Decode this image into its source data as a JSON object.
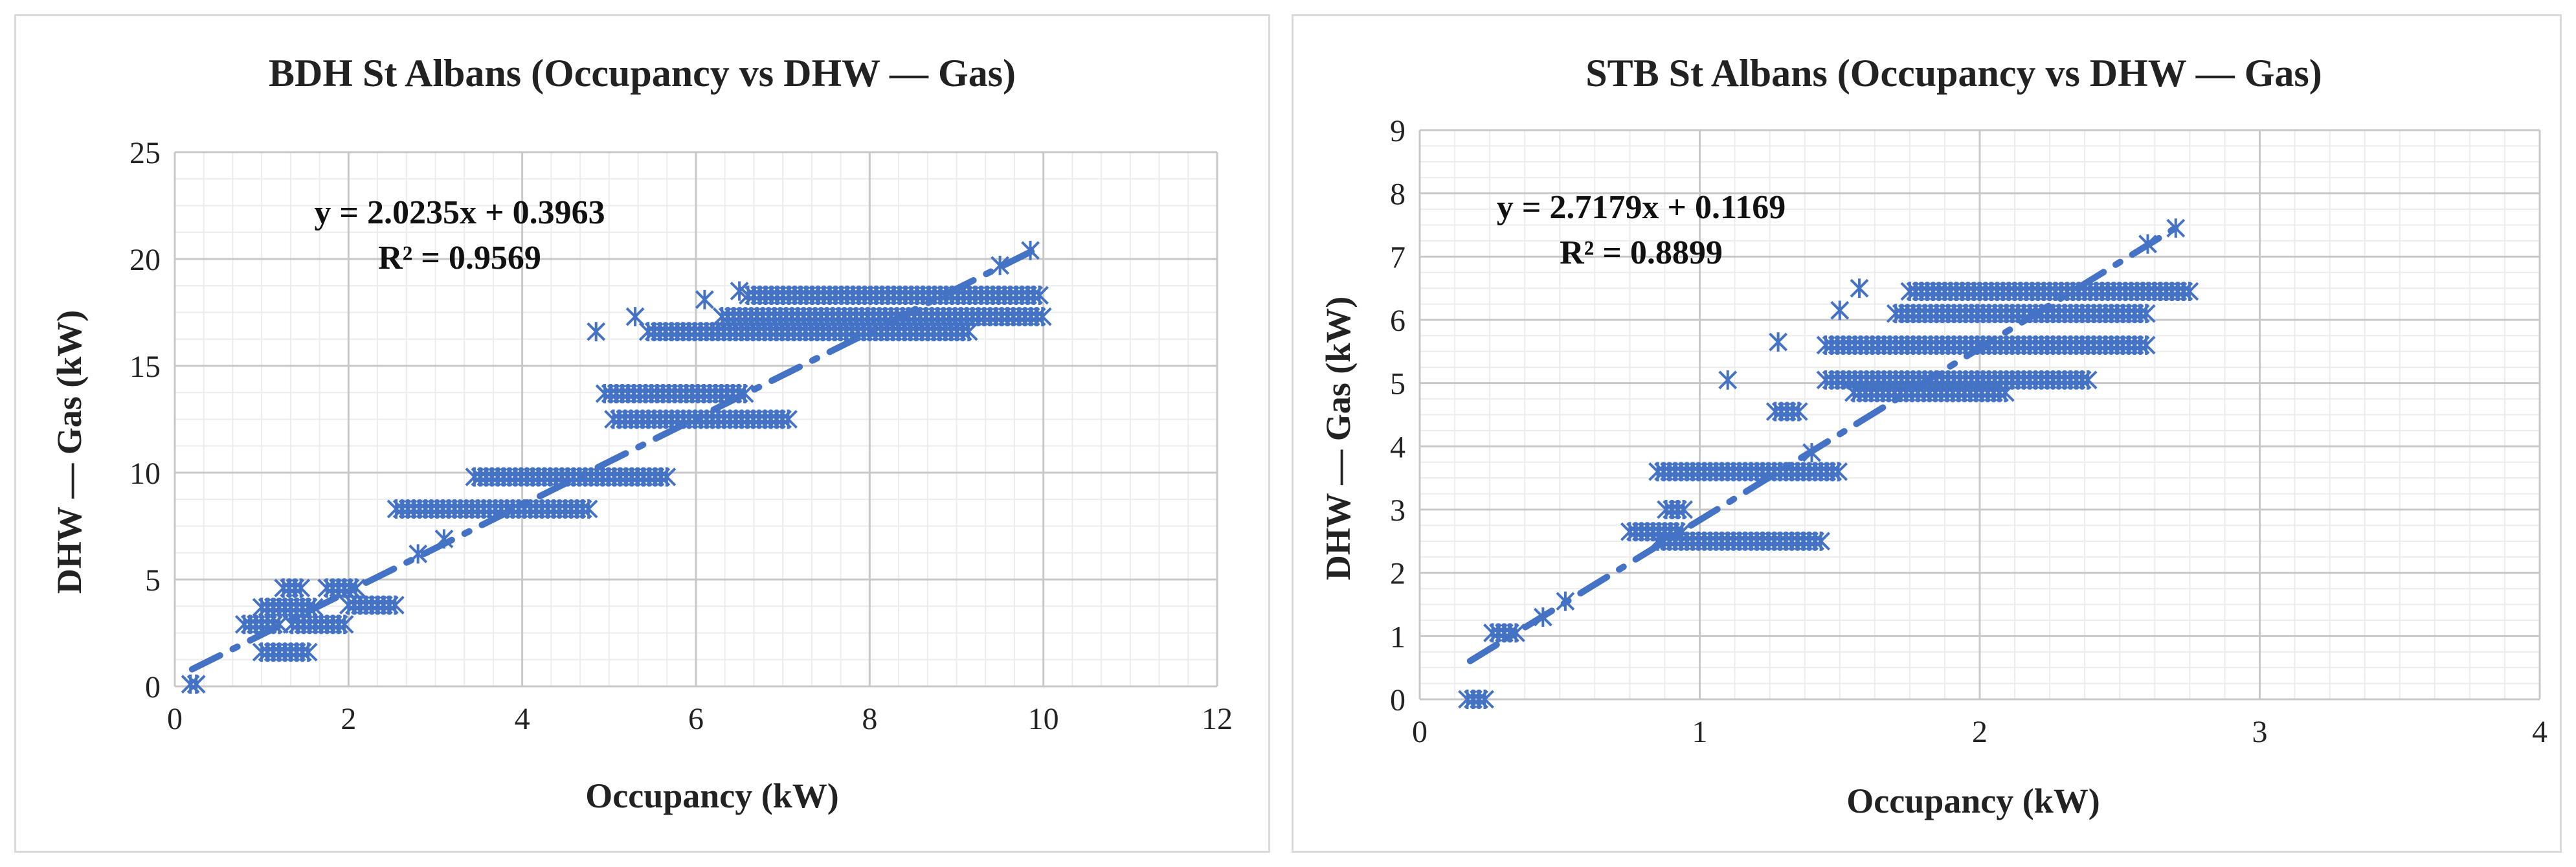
{
  "chart_data": [
    {
      "type": "scatter",
      "title": "BDH St Albans (Occupancy vs DHW — Gas)",
      "xlabel": "Occupancy (kW)",
      "ylabel": "DHW — Gas (kW)",
      "xlim": [
        0,
        12
      ],
      "ylim": [
        0,
        25
      ],
      "xticks": [
        "0",
        "2",
        "4",
        "6",
        "8",
        "10",
        "12"
      ],
      "yticks": [
        "0",
        "5",
        "10",
        "15",
        "20",
        "25"
      ],
      "grid": true,
      "color": "#4472C4",
      "trendline": {
        "equation": "y = 2.0235x + 0.3963",
        "r2": "R² = 0.9569",
        "slope": 2.0235,
        "intercept": 0.3963,
        "x_range": [
          0.2,
          9.9
        ]
      },
      "series": [
        {
          "name": "clusters",
          "clusters": [
            {
              "x": [
                0.18,
                0.28
              ],
              "y": 0.1
            },
            {
              "x": [
                0.8,
                1.2
              ],
              "y": 2.9
            },
            {
              "x": [
                1.0,
                1.55
              ],
              "y": 1.6
            },
            {
              "x": [
                1.0,
                1.6
              ],
              "y": 3.7
            },
            {
              "x": [
                1.25,
                1.5
              ],
              "y": 4.6
            },
            {
              "x": [
                1.35,
                2.0
              ],
              "y": 2.9
            },
            {
              "x": [
                1.75,
                2.1
              ],
              "y": 4.6
            },
            {
              "x": [
                2.0,
                2.55
              ],
              "y": 3.8
            },
            {
              "x": [
                2.55,
                4.8
              ],
              "y": 8.3
            },
            {
              "x": [
                3.45,
                5.7
              ],
              "y": 9.8
            },
            {
              "x": [
                4.95,
                6.6
              ],
              "y": 13.7
            },
            {
              "x": [
                5.05,
                7.1
              ],
              "y": 12.5
            },
            {
              "x": [
                5.45,
                9.2
              ],
              "y": 16.6
            },
            {
              "x": [
                6.3,
                10.0
              ],
              "y": 17.3
            },
            {
              "x": [
                6.6,
                10.0
              ],
              "y": 18.3
            }
          ]
        },
        {
          "name": "outliers",
          "points": [
            [
              2.8,
              6.2
            ],
            [
              3.1,
              6.9
            ],
            [
              4.85,
              16.6
            ],
            [
              5.3,
              17.3
            ],
            [
              6.1,
              18.1
            ],
            [
              6.5,
              18.5
            ],
            [
              9.5,
              19.7
            ],
            [
              9.85,
              20.4
            ]
          ]
        }
      ]
    },
    {
      "type": "scatter",
      "title": "STB St Albans (Occupancy vs DHW — Gas)",
      "xlabel": "Occupancy (kW)",
      "ylabel": "DHW — Gas (kW)",
      "xlim": [
        0,
        4
      ],
      "ylim": [
        0,
        9
      ],
      "xticks": [
        "0",
        "1",
        "2",
        "3",
        "4"
      ],
      "yticks": [
        "0",
        "1",
        "2",
        "3",
        "4",
        "5",
        "6",
        "7",
        "8",
        "9"
      ],
      "grid": true,
      "color": "#4472C4",
      "trendline": {
        "equation": "y = 2.7179x + 0.1169",
        "r2": "R² = 0.8899",
        "slope": 2.7179,
        "intercept": 0.1169,
        "x_range": [
          0.18,
          2.7
        ]
      },
      "series": [
        {
          "name": "clusters",
          "clusters": [
            {
              "x": [
                0.17,
                0.24
              ],
              "y": 0.0
            },
            {
              "x": [
                0.26,
                0.36
              ],
              "y": 1.05
            },
            {
              "x": [
                0.75,
                0.95
              ],
              "y": 2.65
            },
            {
              "x": [
                0.85,
                1.45
              ],
              "y": 2.5
            },
            {
              "x": [
                0.88,
                0.95
              ],
              "y": 3.0
            },
            {
              "x": [
                0.85,
                1.5
              ],
              "y": 3.6
            },
            {
              "x": [
                1.27,
                1.37
              ],
              "y": 4.55
            },
            {
              "x": [
                1.45,
                2.4
              ],
              "y": 5.05
            },
            {
              "x": [
                1.55,
                2.1
              ],
              "y": 4.85
            },
            {
              "x": [
                1.45,
                2.6
              ],
              "y": 5.6
            },
            {
              "x": [
                1.7,
                2.6
              ],
              "y": 6.1
            },
            {
              "x": [
                1.75,
                2.75
              ],
              "y": 6.45
            }
          ]
        },
        {
          "name": "outliers",
          "points": [
            [
              0.44,
              1.3
            ],
            [
              0.52,
              1.55
            ],
            [
              1.1,
              5.05
            ],
            [
              1.28,
              5.65
            ],
            [
              1.4,
              3.9
            ],
            [
              1.5,
              6.15
            ],
            [
              1.57,
              6.5
            ],
            [
              2.6,
              7.2
            ],
            [
              2.7,
              7.45
            ]
          ]
        }
      ]
    }
  ]
}
